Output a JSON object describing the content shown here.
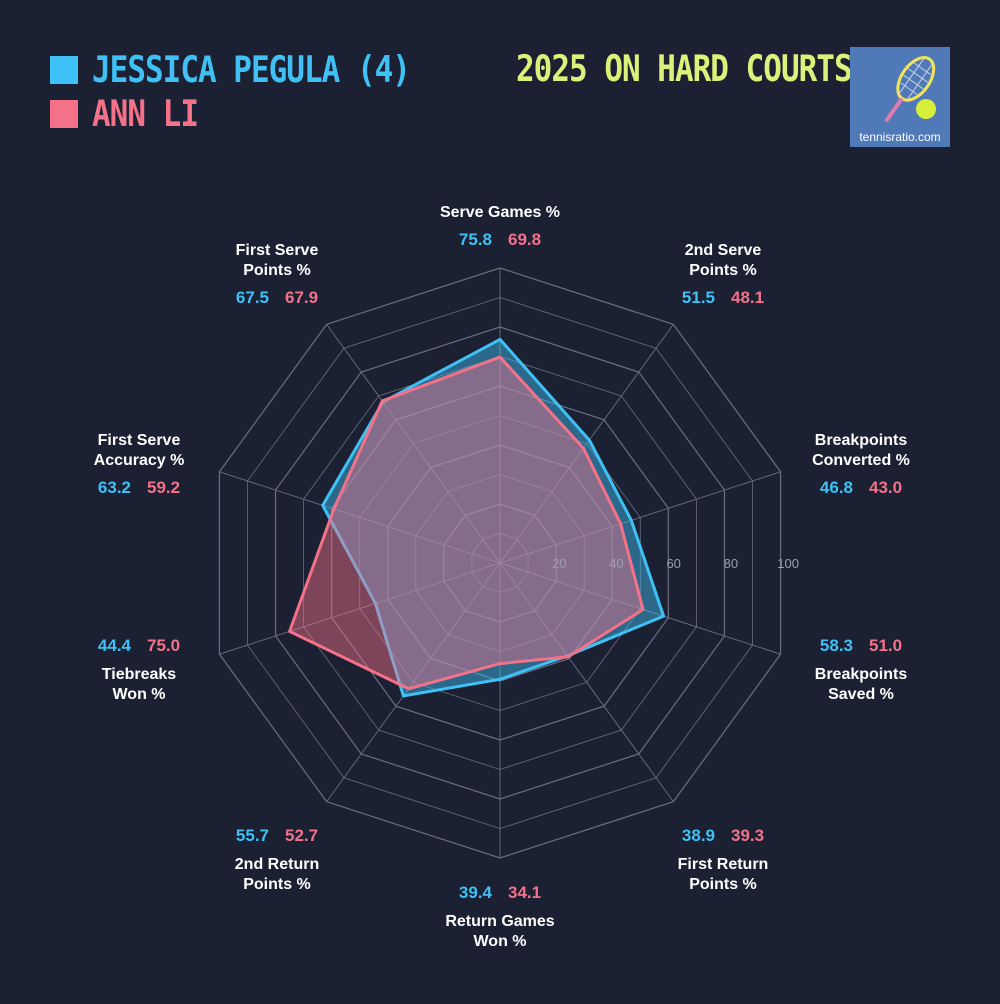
{
  "legend": [
    {
      "name": "JESSICA PEGULA (4)",
      "color": "#3fc1f5"
    },
    {
      "name": "ANN LI",
      "color": "#f3728a"
    }
  ],
  "header": {
    "title": "2025 ON HARD COURTS"
  },
  "logo": {
    "text": "tennisratio.com",
    "icon": "tennis-racket-ball-icon"
  },
  "colors": {
    "background": "#1c2033",
    "grid": "#6a6f80",
    "title": "#d8f27a"
  },
  "chart_data": {
    "type": "radar",
    "title": "2025 ON HARD COURTS",
    "rlim": [
      0,
      100
    ],
    "rticks": [
      "20",
      "40",
      "60",
      "80",
      "100"
    ],
    "axes": [
      "Serve Games %",
      "2nd Serve\nPoints %",
      "Breakpoints\nConverted %",
      "Breakpoints\nSaved %",
      "First Return\nPoints %",
      "Return Games\nWon %",
      "2nd Return\nPoints %",
      "Tiebreaks\nWon %",
      "First Serve\nAccuracy %",
      "First Serve\nPoints %"
    ],
    "series": [
      {
        "name": "JESSICA PEGULA (4)",
        "values": [
          75.8,
          51.5,
          46.8,
          58.3,
          38.9,
          39.4,
          55.7,
          44.4,
          63.2,
          67.5
        ]
      },
      {
        "name": "ANN LI",
        "values": [
          69.8,
          48.1,
          43.0,
          51.0,
          39.3,
          34.1,
          52.7,
          75.0,
          59.2,
          67.9
        ]
      }
    ],
    "value_labels": {
      "series1": [
        "75.8",
        "51.5",
        "46.8",
        "58.3",
        "38.9",
        "39.4",
        "55.7",
        "44.4",
        "63.2",
        "67.5"
      ],
      "series2": [
        "69.8",
        "48.1",
        "43.0",
        "51.0",
        "39.3",
        "34.1",
        "52.7",
        "75.0",
        "59.2",
        "67.9"
      ]
    }
  }
}
